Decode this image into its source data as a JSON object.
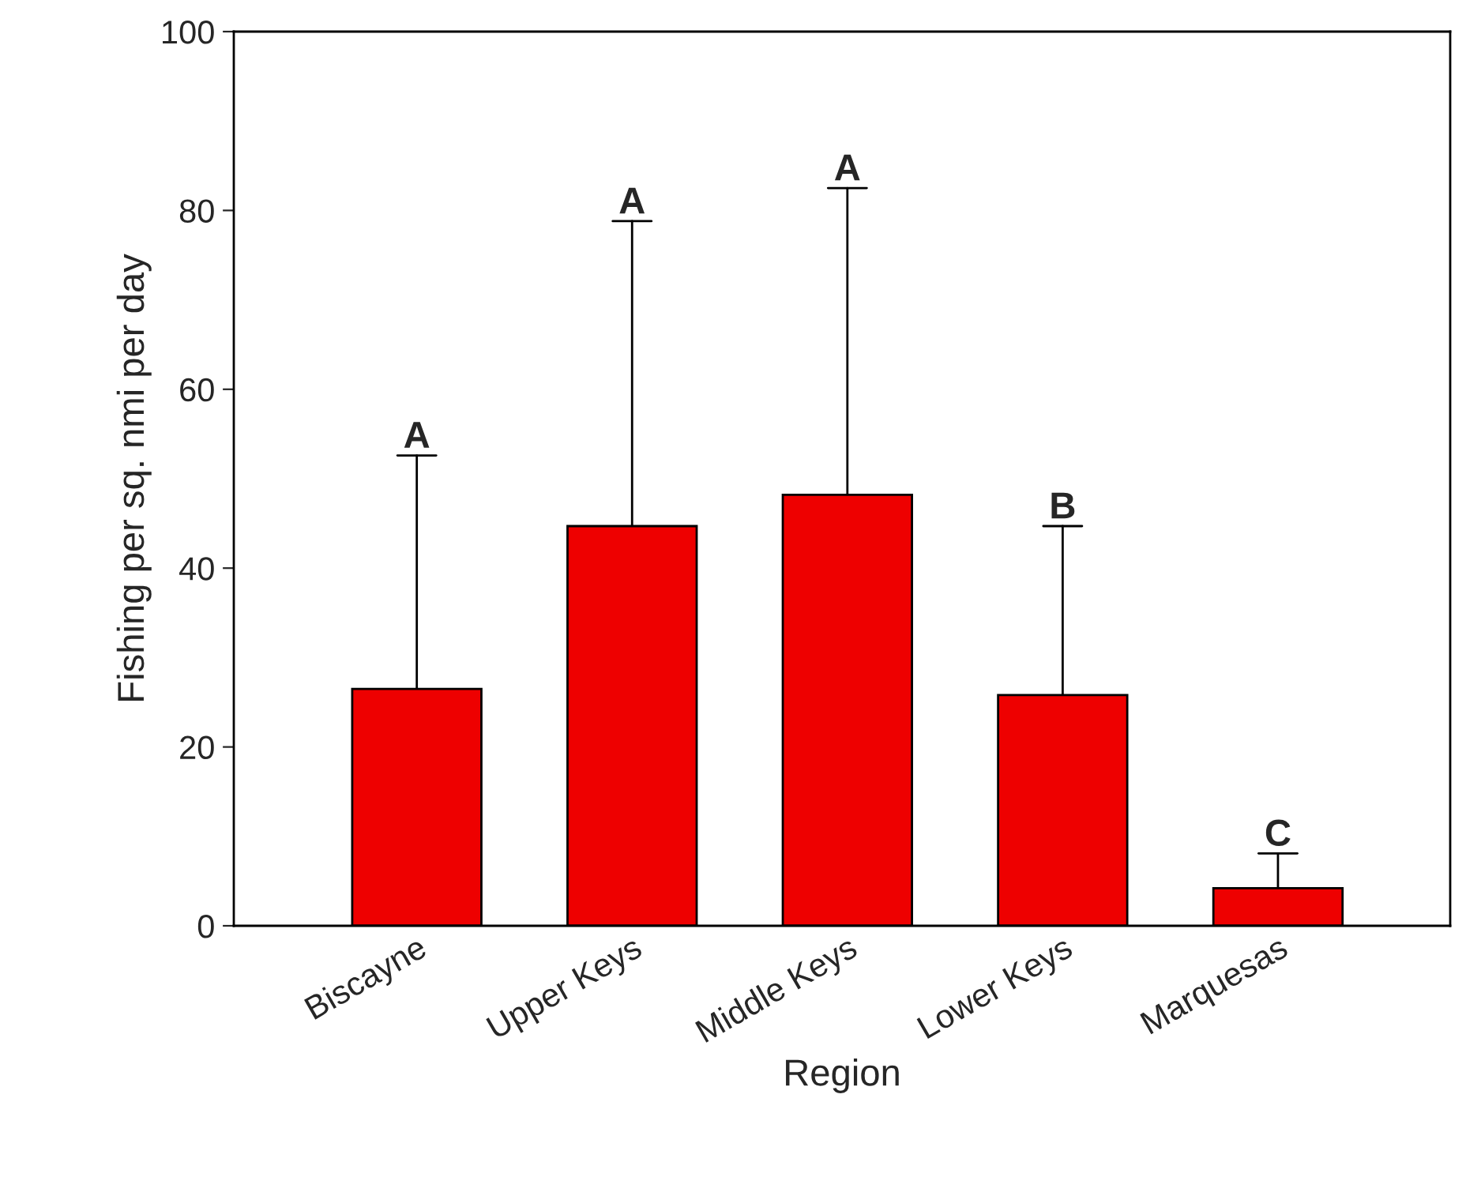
{
  "chart_data": {
    "type": "bar",
    "xlabel": "Region",
    "ylabel": "Fishing per sq. nmi per day",
    "categories": [
      "Biscayne",
      "Upper Keys",
      "Middle Keys",
      "Lower Keys",
      "Marquesas"
    ],
    "values": [
      26.5,
      44.7,
      48.2,
      25.8,
      4.2
    ],
    "errors": [
      [
        26.5,
        52.6
      ],
      [
        44.7,
        78.8
      ],
      [
        48.2,
        82.5
      ],
      [
        25.8,
        44.7
      ],
      [
        4.2,
        8.1
      ]
    ],
    "color": "#ee0000",
    "ylim": [
      0,
      100
    ],
    "yticks": [
      0,
      20,
      40,
      60,
      80,
      100
    ],
    "grid": false,
    "annotations": [
      {
        "text": "A",
        "x": "Biscayne",
        "y": 52.6
      },
      {
        "text": "A",
        "x": "Upper Keys",
        "y": 78.8
      },
      {
        "text": "A",
        "x": "Middle Keys",
        "y": 82.5
      },
      {
        "text": "B",
        "x": "Lower Keys",
        "y": 44.7
      },
      {
        "text": "C",
        "x": "Marquesas",
        "y": 8.1
      }
    ]
  }
}
